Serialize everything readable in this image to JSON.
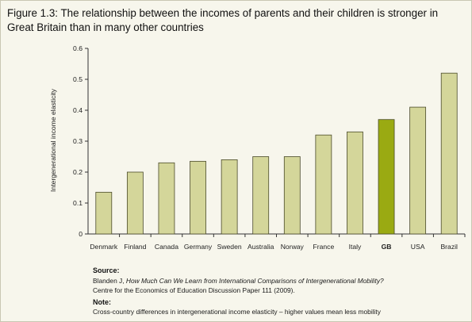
{
  "title": "Figure 1.3: The relationship between the incomes of parents and their children is stronger in Great Britain than in many other countries",
  "source": {
    "heading": "Source:",
    "line1_author": "Blanden J,",
    "line1_title": "How Much Can We Learn from International Comparisons of Intergenerational Mobility?",
    "line2": "Centre for the Economics of Education Discussion Paper 111 (2009)."
  },
  "note": {
    "heading": "Note:",
    "text": "Cross-country differences in intergenerational income elasticity – higher values mean less mobility"
  },
  "colors": {
    "bar": "#d4d69a",
    "bar_highlight": "#9aaa12",
    "bar_edge": "#4a4a2a",
    "background": "#f7f6ec"
  },
  "chart_data": {
    "type": "bar",
    "ylabel": "Intergenerational income elasticity",
    "xlabel": "",
    "ylim": [
      0,
      0.6
    ],
    "yticks": [
      "0",
      "0.1",
      "0.2",
      "0.3",
      "0.4",
      "0.5",
      "0.6"
    ],
    "categories": [
      "Denmark",
      "Finland",
      "Canada",
      "Germany",
      "Sweden",
      "Australia",
      "Norway",
      "France",
      "Italy",
      "GB",
      "USA",
      "Brazil"
    ],
    "values": [
      0.135,
      0.2,
      0.23,
      0.235,
      0.24,
      0.25,
      0.25,
      0.32,
      0.33,
      0.37,
      0.41,
      0.52
    ],
    "highlight": "GB",
    "grid": false,
    "legend": "none"
  }
}
